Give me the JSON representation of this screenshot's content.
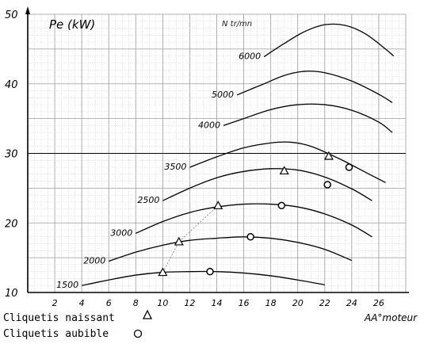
{
  "chart_data": {
    "type": "line",
    "ylabel": "Pe (kW)",
    "xlabel": "AA°moteur",
    "series_header": "N tr/mn",
    "xlim": [
      0,
      28
    ],
    "ylim": [
      10,
      50
    ],
    "x_ticks": [
      2,
      4,
      6,
      8,
      10,
      12,
      14,
      16,
      18,
      20,
      22,
      24,
      26
    ],
    "y_ticks": [
      10,
      20,
      30,
      40,
      50
    ],
    "grid": true,
    "series": [
      {
        "name": "1500",
        "points": [
          [
            4,
            11.0
          ],
          [
            6,
            11.8
          ],
          [
            8,
            12.5
          ],
          [
            10,
            12.9
          ],
          [
            12,
            13.0
          ],
          [
            14,
            13.0
          ],
          [
            16,
            12.8
          ],
          [
            18,
            12.4
          ],
          [
            20,
            11.8
          ],
          [
            22,
            11.1
          ]
        ]
      },
      {
        "name": "2000",
        "points": [
          [
            6,
            14.5
          ],
          [
            8,
            15.8
          ],
          [
            10,
            16.8
          ],
          [
            12,
            17.5
          ],
          [
            14,
            17.8
          ],
          [
            16,
            18.0
          ],
          [
            18,
            17.8
          ],
          [
            20,
            17.2
          ],
          [
            22,
            16.2
          ],
          [
            24,
            14.6
          ]
        ]
      },
      {
        "name": "3000",
        "points": [
          [
            8,
            18.5
          ],
          [
            10,
            20.2
          ],
          [
            12,
            21.5
          ],
          [
            14,
            22.3
          ],
          [
            16,
            22.7
          ],
          [
            18,
            22.7
          ],
          [
            20,
            22.3
          ],
          [
            22,
            21.3
          ],
          [
            24,
            19.7
          ],
          [
            25.5,
            18.0
          ]
        ]
      },
      {
        "name": "2500",
        "points": [
          [
            10,
            23.2
          ],
          [
            12,
            25.0
          ],
          [
            14,
            26.5
          ],
          [
            16,
            27.4
          ],
          [
            18,
            27.8
          ],
          [
            20,
            27.6
          ],
          [
            22,
            26.6
          ],
          [
            24,
            24.9
          ],
          [
            25.5,
            23.2
          ]
        ]
      },
      {
        "name": "3500",
        "points": [
          [
            12,
            28.0
          ],
          [
            14,
            29.5
          ],
          [
            16,
            30.8
          ],
          [
            18,
            31.5
          ],
          [
            19.5,
            31.6
          ],
          [
            21,
            31.0
          ],
          [
            23,
            29.3
          ],
          [
            25,
            27.3
          ],
          [
            26.5,
            25.8
          ]
        ]
      },
      {
        "name": "4000",
        "points": [
          [
            14.5,
            34.0
          ],
          [
            16,
            35.0
          ],
          [
            18,
            36.3
          ],
          [
            20,
            37.0
          ],
          [
            22,
            37.0
          ],
          [
            24,
            36.2
          ],
          [
            26,
            34.5
          ],
          [
            27,
            33.0
          ]
        ]
      },
      {
        "name": "5000",
        "points": [
          [
            15.5,
            38.4
          ],
          [
            17.5,
            40.0
          ],
          [
            19,
            41.2
          ],
          [
            20.5,
            41.8
          ],
          [
            22,
            41.6
          ],
          [
            24,
            40.4
          ],
          [
            26,
            38.5
          ],
          [
            27,
            37.3
          ]
        ]
      },
      {
        "name": "6000",
        "points": [
          [
            17.5,
            43.9
          ],
          [
            19,
            45.8
          ],
          [
            20.5,
            47.5
          ],
          [
            22,
            48.5
          ],
          [
            23.5,
            48.4
          ],
          [
            25,
            47.2
          ],
          [
            26.5,
            45.0
          ],
          [
            27.1,
            44.0
          ]
        ]
      }
    ],
    "cliquetis_naissant_points": [
      [
        10,
        12.9
      ],
      [
        11.2,
        17.3
      ],
      [
        14.1,
        22.5
      ],
      [
        19,
        27.5
      ],
      [
        22.3,
        29.6
      ]
    ],
    "cliquetis_audible_points": [
      [
        13.5,
        13.0
      ],
      [
        16.5,
        18.0
      ],
      [
        18.8,
        22.5
      ],
      [
        22.2,
        25.5
      ],
      [
        23.8,
        28.0
      ]
    ],
    "legend": [
      {
        "label": "Cliquetis naissant",
        "marker": "triangle"
      },
      {
        "label": "Cliquetis aubible",
        "marker": "circle"
      }
    ]
  }
}
